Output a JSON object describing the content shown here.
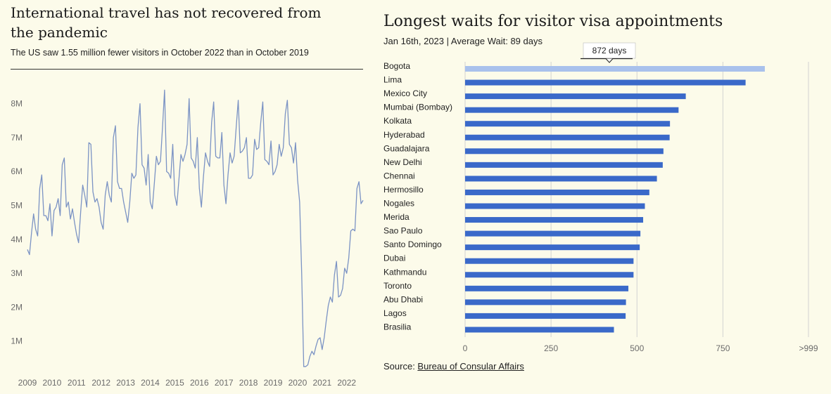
{
  "left_chart": {
    "title": "International travel has not recovered from the pandemic",
    "subtitle": "The US saw 1.55 million fewer visitors in October 2022 than in October 2019"
  },
  "right_chart": {
    "title": "Longest waits for visitor visa appointments",
    "subtitle": "Jan 16th, 2023 | Average Wait: 89 days",
    "tooltip": "872 days"
  },
  "source": {
    "prefix": "Source: ",
    "link_text": "Bureau of Consular Affairs"
  },
  "colors": {
    "line": "#7b93c4",
    "bar": "#3a69c9",
    "bar_highlight": "#a9c1ec",
    "grid": "#d2d2d2",
    "background": "#fcfbea"
  },
  "chart_data": [
    {
      "type": "line",
      "x_start": "2009-01",
      "x_step": "month",
      "x_tick_labels": [
        "2009",
        "2010",
        "2011",
        "2012",
        "2013",
        "2014",
        "2015",
        "2016",
        "2017",
        "2018",
        "2019",
        "2020",
        "2021",
        "2022"
      ],
      "y_tick_labels": [
        "1M",
        "2M",
        "3M",
        "4M",
        "5M",
        "6M",
        "7M",
        "8M"
      ],
      "ylim": [
        0,
        8800000
      ],
      "grid": false,
      "series": [
        {
          "values": [
            3.7,
            3.55,
            4.2,
            4.75,
            4.3,
            4.1,
            5.5,
            5.9,
            4.7,
            4.7,
            4.55,
            5.05,
            4.1,
            4.85,
            4.95,
            5.2,
            4.7,
            6.2,
            6.4,
            4.95,
            5.1,
            4.6,
            4.9,
            4.5,
            4.15,
            3.9,
            4.8,
            5.6,
            5.3,
            4.95,
            6.85,
            6.8,
            5.4,
            5.1,
            5.2,
            4.95,
            4.5,
            4.3,
            5.3,
            5.7,
            5.3,
            5.1,
            7.0,
            7.35,
            5.7,
            5.5,
            5.5,
            5.1,
            4.8,
            4.5,
            5.1,
            5.95,
            5.8,
            5.9,
            7.3,
            8.0,
            6.2,
            6.1,
            5.6,
            6.5,
            5.1,
            4.9,
            5.65,
            6.45,
            6.2,
            6.3,
            7.3,
            8.4,
            6.0,
            5.95,
            5.8,
            6.8,
            5.3,
            5.0,
            5.75,
            6.5,
            6.3,
            6.5,
            6.8,
            8.15,
            6.4,
            6.3,
            6.1,
            7.0,
            5.5,
            4.95,
            5.85,
            6.55,
            6.3,
            6.15,
            7.45,
            8.05,
            6.45,
            6.4,
            6.4,
            7.15,
            5.6,
            5.05,
            5.9,
            6.55,
            6.25,
            6.45,
            7.3,
            8.1,
            6.55,
            6.6,
            6.7,
            7.0,
            5.8,
            5.8,
            5.9,
            6.95,
            6.65,
            6.7,
            7.45,
            8.05,
            6.35,
            6.3,
            6.2,
            6.9,
            5.9,
            6.0,
            6.2,
            6.8,
            6.45,
            6.7,
            7.7,
            8.1,
            6.8,
            6.7,
            6.25,
            6.85,
            5.75,
            5.1,
            3.0,
            0.25,
            0.25,
            0.3,
            0.55,
            0.7,
            0.6,
            0.85,
            1.05,
            1.1,
            0.75,
            1.1,
            1.6,
            2.05,
            2.3,
            2.15,
            2.95,
            3.35,
            2.3,
            2.35,
            2.55,
            3.15,
            3.0,
            3.45,
            4.25,
            4.3,
            4.25,
            5.5,
            5.7,
            5.05,
            5.15
          ]
        }
      ]
    },
    {
      "type": "bar",
      "orientation": "horizontal",
      "categories": [
        "Bogota",
        "Lima",
        "Mexico City",
        "Mumbai (Bombay)",
        "Kolkata",
        "Hyderabad",
        "Guadalajara",
        "New Delhi",
        "Chennai",
        "Hermosillo",
        "Nogales",
        "Merida",
        "Sao Paulo",
        "Santo Domingo",
        "Dubai",
        "Kathmandu",
        "Toronto",
        "Abu Dhabi",
        "Lagos",
        "Brasilia"
      ],
      "values": [
        872,
        816,
        642,
        621,
        596,
        595,
        577,
        575,
        558,
        536,
        523,
        518,
        510,
        508,
        490,
        490,
        475,
        468,
        467,
        433
      ],
      "x_ticks": [
        0,
        250,
        500,
        750,
        999
      ],
      "x_tick_labels": [
        "0",
        "250",
        "500",
        "750",
        ">999"
      ],
      "xlim": [
        0,
        999
      ],
      "highlighted_category": "Bogota",
      "grid": true
    }
  ]
}
